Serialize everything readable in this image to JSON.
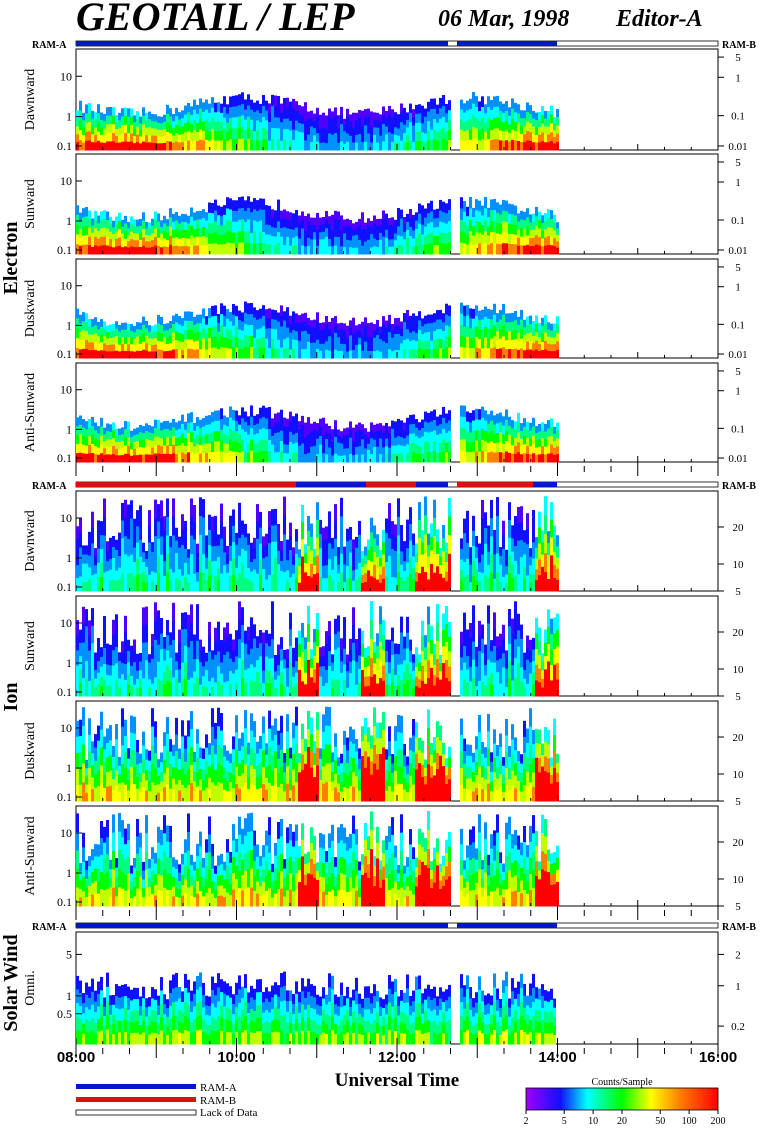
{
  "header": {
    "title": "GEOTAIL / LEP",
    "date": "06 Mar, 1998",
    "editor": "Editor-A"
  },
  "ram": {
    "a": "RAM-A",
    "b": "RAM-B"
  },
  "groups": {
    "electron": "Electron",
    "ion": "Ion",
    "solar_wind": "Solar Wind"
  },
  "xaxis": {
    "label": "Universal Time",
    "range_hours": [
      8,
      16
    ],
    "ticks": [
      "08:00",
      "10:00",
      "12:00",
      "14:00",
      "16:00"
    ]
  },
  "legend": {
    "ram_a": "RAM-A",
    "ram_b": "RAM-B",
    "lack": "Lack of Data",
    "colors": {
      "ram_a": "#0018c8",
      "ram_b": "#d81010"
    }
  },
  "colorbar": {
    "title": "Counts/Sample",
    "ticks": [
      "2",
      "5",
      "10",
      "20",
      "50",
      "100",
      "200"
    ],
    "range": [
      2,
      200
    ],
    "scale": "log"
  },
  "chart_data": [
    {
      "type": "heatmap",
      "group": "Electron",
      "ylabel": "Dawnward",
      "left_ticks": [
        "10",
        "1",
        "0.1"
      ],
      "right_ticks": [
        "5",
        "1",
        "0.1",
        "0.01"
      ],
      "data_range_hours": [
        8.0,
        14.0
      ]
    },
    {
      "type": "heatmap",
      "group": "Electron",
      "ylabel": "Sunward",
      "left_ticks": [
        "10",
        "1",
        "0.1"
      ],
      "right_ticks": [
        "5",
        "1",
        "0.1",
        "0.01"
      ],
      "data_range_hours": [
        8.0,
        14.0
      ]
    },
    {
      "type": "heatmap",
      "group": "Electron",
      "ylabel": "Duskward",
      "left_ticks": [
        "10",
        "1",
        "0.1"
      ],
      "right_ticks": [
        "5",
        "1",
        "0.1",
        "0.01"
      ],
      "data_range_hours": [
        8.0,
        14.0
      ]
    },
    {
      "type": "heatmap",
      "group": "Electron",
      "ylabel": "Anti-Sunward",
      "left_ticks": [
        "10",
        "1",
        "0.1"
      ],
      "right_ticks": [
        "5",
        "1",
        "0.1",
        "0.01"
      ],
      "data_range_hours": [
        8.0,
        14.0
      ]
    },
    {
      "type": "heatmap",
      "group": "Ion",
      "ylabel": "Dawnward",
      "left_ticks": [
        "10",
        "1",
        "0.1"
      ],
      "right_ticks": [
        "20",
        "10",
        "5"
      ],
      "data_range_hours": [
        8.0,
        14.0
      ]
    },
    {
      "type": "heatmap",
      "group": "Ion",
      "ylabel": "Sunward",
      "left_ticks": [
        "10",
        "1",
        "0.1"
      ],
      "right_ticks": [
        "20",
        "10",
        "5"
      ],
      "data_range_hours": [
        8.0,
        14.0
      ]
    },
    {
      "type": "heatmap",
      "group": "Ion",
      "ylabel": "Duskward",
      "left_ticks": [
        "10",
        "1",
        "0.1"
      ],
      "right_ticks": [
        "20",
        "10",
        "5"
      ],
      "data_range_hours": [
        8.0,
        14.0
      ]
    },
    {
      "type": "heatmap",
      "group": "Ion",
      "ylabel": "Anti-Sunward",
      "left_ticks": [
        "10",
        "1",
        "0.1"
      ],
      "right_ticks": [
        "20",
        "10",
        "5"
      ],
      "data_range_hours": [
        8.0,
        14.0
      ]
    },
    {
      "type": "heatmap",
      "group": "Solar Wind",
      "ylabel": "Omni.",
      "left_ticks": [
        "5",
        "1",
        "0.5"
      ],
      "right_ticks": [
        "2",
        "1",
        "0.2"
      ],
      "data_range_hours": [
        8.0,
        13.95
      ]
    }
  ]
}
